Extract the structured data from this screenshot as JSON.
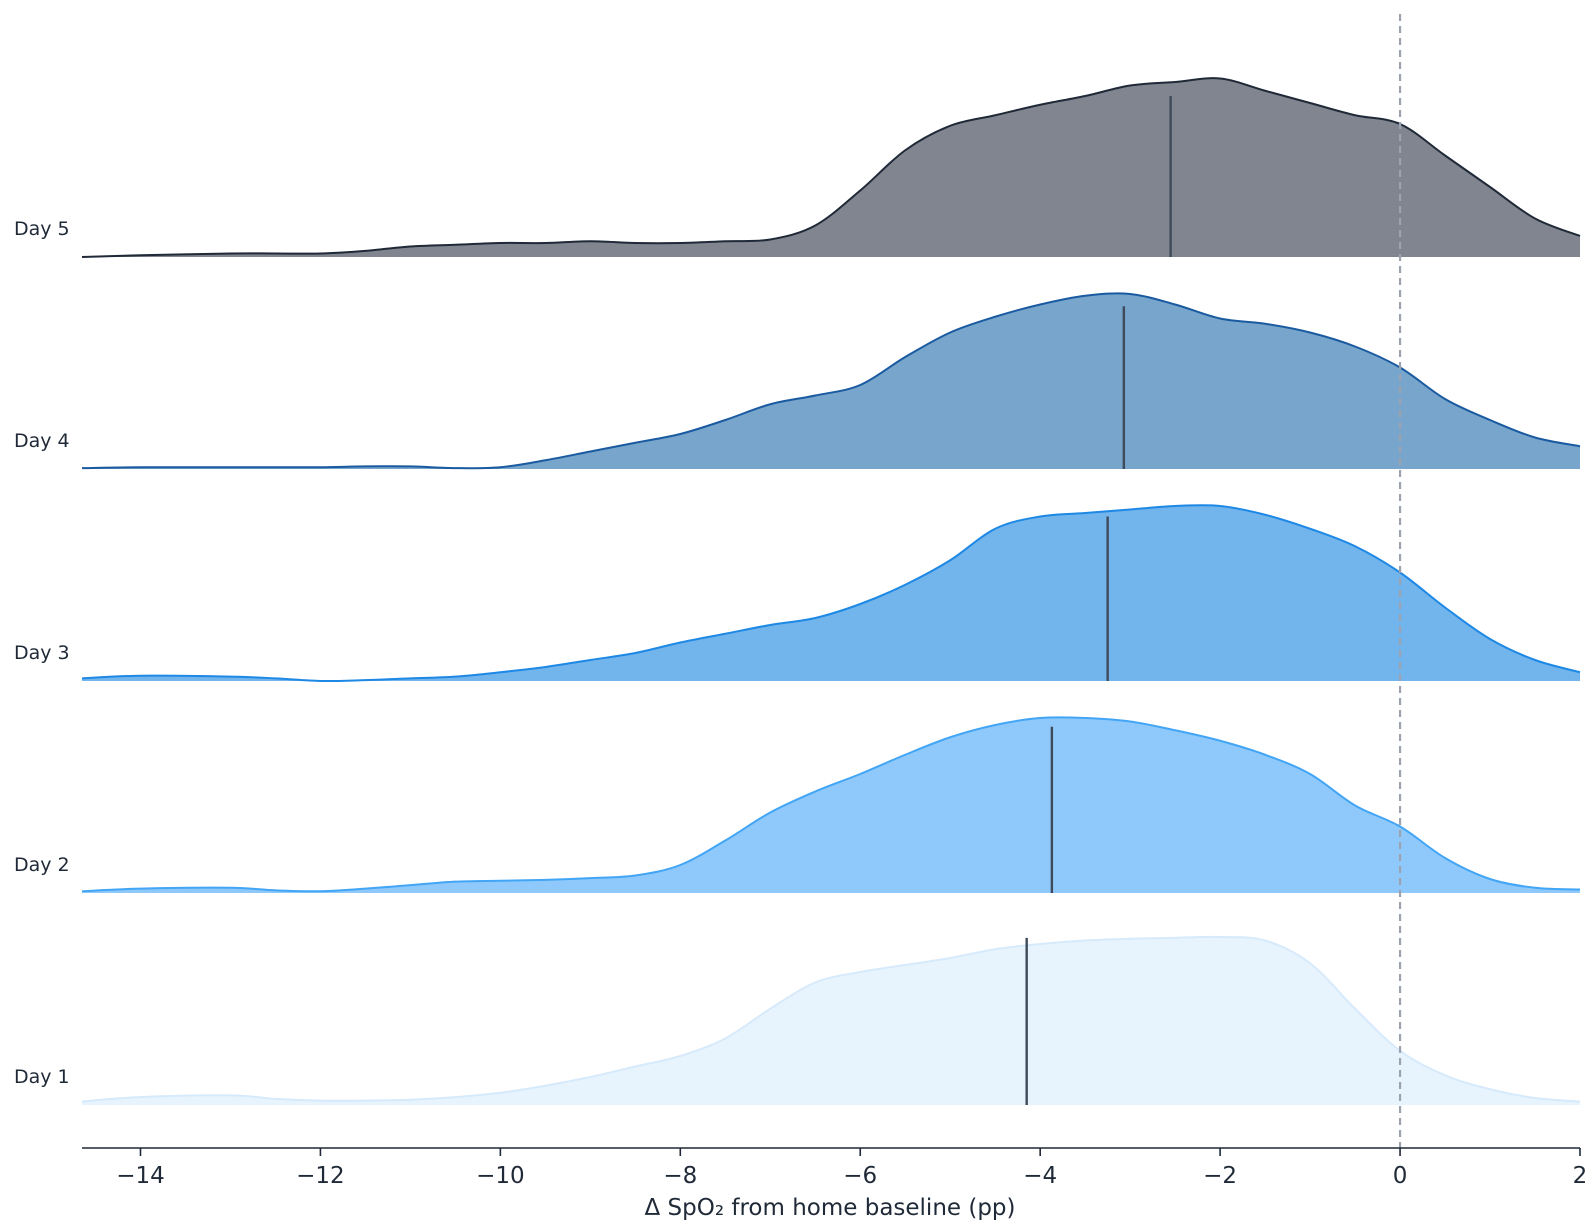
{
  "chart_data": {
    "type": "ridgeline",
    "xlabel": "Δ SpO₂ from home baseline (pp)",
    "xlim": [
      -14.65,
      2.0
    ],
    "xticks": [
      -14,
      -12,
      -10,
      -8,
      -6,
      -4,
      -2,
      0,
      2
    ],
    "xtick_labels": [
      "−14",
      "−12",
      "−10",
      "−8",
      "−6",
      "−4",
      "−2",
      "0",
      "2"
    ],
    "reference_line": {
      "x": 0,
      "style": "dashed",
      "color": "#9ca3af"
    },
    "x_grid": [
      -14.65,
      -14,
      -13,
      -12.5,
      -12,
      -11.5,
      -11,
      -10.5,
      -10,
      -9.5,
      -9,
      -8.5,
      -8,
      -7.5,
      -7,
      -6.5,
      -6,
      -5.5,
      -5,
      -4.5,
      -4,
      -3.5,
      -3,
      -2.5,
      -2,
      -1.5,
      -1,
      -0.5,
      0,
      0.5,
      1,
      1.5,
      2
    ],
    "series": [
      {
        "name": "Day 1",
        "fill": "#e8f4fd",
        "line": "#d6eafb",
        "median": -4.15,
        "median_height": 0.955,
        "density": [
          0.02,
          0.045,
          0.055,
          0.035,
          0.025,
          0.025,
          0.03,
          0.045,
          0.07,
          0.11,
          0.16,
          0.22,
          0.28,
          0.38,
          0.55,
          0.7,
          0.76,
          0.8,
          0.84,
          0.89,
          0.92,
          0.94,
          0.95,
          0.955,
          0.96,
          0.94,
          0.81,
          0.55,
          0.31,
          0.17,
          0.09,
          0.04,
          0.02
        ]
      },
      {
        "name": "Day 2",
        "fill": "#8fc9fb",
        "line": "#42a5f5",
        "median": -3.87,
        "median_height": 0.95,
        "density": [
          0.01,
          0.025,
          0.03,
          0.015,
          0.01,
          0.025,
          0.045,
          0.065,
          0.07,
          0.075,
          0.085,
          0.1,
          0.16,
          0.3,
          0.46,
          0.58,
          0.68,
          0.79,
          0.89,
          0.96,
          1.0,
          1.0,
          0.98,
          0.93,
          0.87,
          0.79,
          0.68,
          0.5,
          0.38,
          0.2,
          0.08,
          0.03,
          0.02
        ]
      },
      {
        "name": "Day 3",
        "fill": "#72b4ec",
        "line": "#1e88e5",
        "median": -3.25,
        "median_height": 0.94,
        "density": [
          0.015,
          0.03,
          0.025,
          0.015,
          0.0,
          0.005,
          0.015,
          0.025,
          0.05,
          0.08,
          0.12,
          0.16,
          0.22,
          0.27,
          0.32,
          0.36,
          0.44,
          0.55,
          0.69,
          0.87,
          0.94,
          0.96,
          0.98,
          1.0,
          1.0,
          0.95,
          0.87,
          0.77,
          0.62,
          0.42,
          0.24,
          0.12,
          0.05
        ]
      },
      {
        "name": "Day 4",
        "fill": "#77a5cb",
        "line": "#1a5aa0",
        "median": -3.07,
        "median_height": 0.93,
        "density": [
          0.005,
          0.01,
          0.01,
          0.01,
          0.01,
          0.015,
          0.015,
          0.005,
          0.01,
          0.05,
          0.1,
          0.15,
          0.2,
          0.28,
          0.37,
          0.42,
          0.48,
          0.64,
          0.78,
          0.87,
          0.94,
          0.99,
          1.0,
          0.94,
          0.86,
          0.83,
          0.78,
          0.7,
          0.58,
          0.4,
          0.28,
          0.18,
          0.13
        ]
      },
      {
        "name": "Day 5",
        "fill": "#81858f",
        "line": "#1f2937",
        "median": -2.55,
        "median_height": 0.92,
        "density": [
          0.0,
          0.01,
          0.02,
          0.02,
          0.02,
          0.035,
          0.06,
          0.07,
          0.08,
          0.08,
          0.09,
          0.08,
          0.08,
          0.09,
          0.1,
          0.18,
          0.38,
          0.61,
          0.75,
          0.81,
          0.87,
          0.92,
          0.98,
          1.0,
          1.02,
          0.95,
          0.88,
          0.81,
          0.76,
          0.58,
          0.4,
          0.22,
          0.12
        ]
      }
    ]
  }
}
